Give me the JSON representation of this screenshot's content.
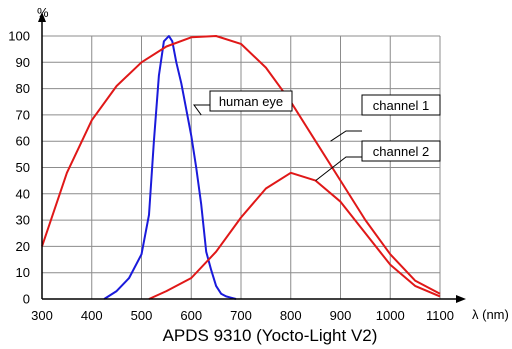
{
  "chart_data": {
    "type": "line",
    "title": "APDS 9310 (Yocto-Light V2)",
    "xlabel": "λ (nm)",
    "ylabel": "%",
    "xlim": [
      300,
      1100
    ],
    "ylim": [
      0,
      100
    ],
    "grid": true,
    "xticks": [
      300,
      400,
      500,
      600,
      700,
      800,
      900,
      1000,
      1100
    ],
    "yticks": [
      0,
      10,
      20,
      30,
      40,
      50,
      60,
      70,
      80,
      90,
      100
    ],
    "series": [
      {
        "name": "human eye",
        "color": "#1a1adb",
        "x": [
          425,
          450,
          475,
          500,
          515,
          525,
          535,
          545,
          555,
          562,
          570,
          580,
          590,
          600,
          610,
          620,
          630,
          640,
          650,
          660,
          670,
          680,
          690
        ],
        "y": [
          0,
          3,
          8,
          17,
          32,
          60,
          85,
          98,
          100,
          98,
          90,
          82,
          72,
          62,
          50,
          36,
          18,
          11,
          5,
          2,
          1,
          0.5,
          0
        ]
      },
      {
        "name": "channel 1",
        "color": "#e01818",
        "x": [
          300,
          350,
          400,
          450,
          500,
          550,
          600,
          650,
          700,
          750,
          800,
          850,
          900,
          950,
          1000,
          1050,
          1100
        ],
        "y": [
          20,
          48,
          68,
          81,
          90,
          96,
          99.5,
          100,
          97,
          88,
          75,
          60,
          45,
          30,
          17,
          7,
          2
        ]
      },
      {
        "name": "channel 2",
        "color": "#e01818",
        "x": [
          515,
          550,
          600,
          650,
          700,
          750,
          800,
          850,
          900,
          950,
          1000,
          1050,
          1100
        ],
        "y": [
          0,
          3,
          8,
          18,
          31,
          42,
          48,
          45,
          37,
          25,
          13,
          5,
          1
        ]
      }
    ]
  }
}
